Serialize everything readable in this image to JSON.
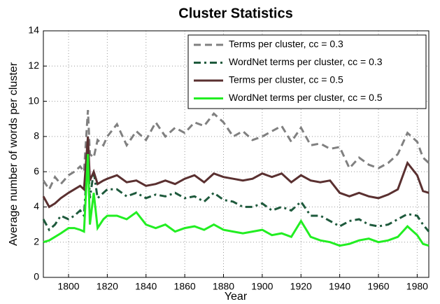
{
  "chart_data": {
    "type": "line",
    "title": "Cluster Statistics",
    "xlabel": "Year",
    "ylabel": "Average number of words per cluster",
    "x": [
      1787,
      1790,
      1793,
      1796,
      1800,
      1803,
      1806,
      1808,
      1810,
      1811,
      1813,
      1815,
      1818,
      1820,
      1825,
      1830,
      1835,
      1840,
      1845,
      1850,
      1855,
      1860,
      1865,
      1870,
      1875,
      1880,
      1885,
      1890,
      1895,
      1900,
      1905,
      1910,
      1915,
      1920,
      1925,
      1930,
      1935,
      1940,
      1945,
      1950,
      1955,
      1960,
      1965,
      1970,
      1975,
      1980,
      1983,
      1986
    ],
    "series": [
      {
        "name": "Terms per cluster, cc = 0.3",
        "color": "#808080",
        "style": "dashed",
        "values": [
          5.5,
          5.0,
          5.7,
          5.3,
          5.8,
          6.0,
          6.3,
          6.0,
          9.5,
          7.0,
          6.8,
          7.8,
          7.5,
          8.0,
          8.7,
          7.5,
          8.3,
          7.8,
          8.8,
          8.0,
          8.5,
          8.2,
          8.8,
          8.6,
          9.3,
          8.8,
          8.0,
          8.3,
          7.8,
          8.0,
          8.3,
          8.6,
          7.7,
          8.5,
          7.5,
          7.6,
          7.3,
          7.4,
          6.2,
          6.8,
          6.4,
          6.2,
          6.5,
          7.0,
          8.2,
          7.7,
          6.8,
          6.5
        ]
      },
      {
        "name": "WordNet terms per cluster, cc = 0.3",
        "color": "#1e5a3c",
        "style": "dashdot",
        "values": [
          3.3,
          2.7,
          3.0,
          3.5,
          3.3,
          3.5,
          3.8,
          3.5,
          7.0,
          4.5,
          6.0,
          4.5,
          4.8,
          5.0,
          5.0,
          4.6,
          4.8,
          4.5,
          4.7,
          4.6,
          4.8,
          4.5,
          4.6,
          4.3,
          4.8,
          4.4,
          4.3,
          4.0,
          4.0,
          4.2,
          3.8,
          4.0,
          3.8,
          4.3,
          3.5,
          3.5,
          3.2,
          2.9,
          3.2,
          3.3,
          3.0,
          2.9,
          3.0,
          3.3,
          3.6,
          3.5,
          3.0,
          2.6
        ]
      },
      {
        "name": "Terms per cluster, cc = 0.5",
        "color": "#5a3030",
        "style": "solid",
        "values": [
          4.6,
          4.0,
          4.2,
          4.5,
          4.8,
          5.0,
          5.2,
          5.0,
          8.0,
          5.5,
          6.0,
          5.3,
          5.5,
          5.6,
          5.8,
          5.4,
          5.5,
          5.2,
          5.3,
          5.5,
          5.3,
          5.6,
          5.8,
          5.4,
          5.9,
          5.7,
          5.6,
          5.5,
          5.6,
          5.9,
          5.7,
          5.9,
          5.4,
          5.8,
          5.5,
          5.4,
          5.5,
          4.8,
          4.6,
          4.8,
          4.6,
          4.5,
          4.7,
          5.0,
          6.5,
          5.8,
          4.9,
          4.8
        ]
      },
      {
        "name": "WordNet terms per cluster, cc = 0.5",
        "color": "#22ee22",
        "style": "solid",
        "values": [
          2.0,
          2.1,
          2.3,
          2.5,
          2.8,
          2.8,
          2.7,
          2.6,
          7.0,
          3.0,
          4.8,
          2.8,
          3.3,
          3.5,
          3.5,
          3.3,
          3.7,
          3.0,
          2.8,
          3.0,
          2.6,
          2.8,
          2.9,
          2.7,
          3.0,
          2.7,
          2.6,
          2.5,
          2.6,
          2.7,
          2.4,
          2.5,
          2.3,
          3.2,
          2.3,
          2.1,
          2.0,
          1.8,
          1.9,
          2.1,
          2.2,
          2.0,
          2.1,
          2.3,
          2.9,
          2.4,
          1.9,
          1.8
        ]
      }
    ],
    "xlim": [
      1787,
      1986
    ],
    "ylim": [
      0,
      14
    ],
    "xticks": [
      1800,
      1820,
      1840,
      1860,
      1880,
      1900,
      1920,
      1940,
      1960,
      1980
    ],
    "yticks": [
      0,
      2,
      4,
      6,
      8,
      10,
      12,
      14
    ],
    "grid": true,
    "legend": "top-right"
  }
}
